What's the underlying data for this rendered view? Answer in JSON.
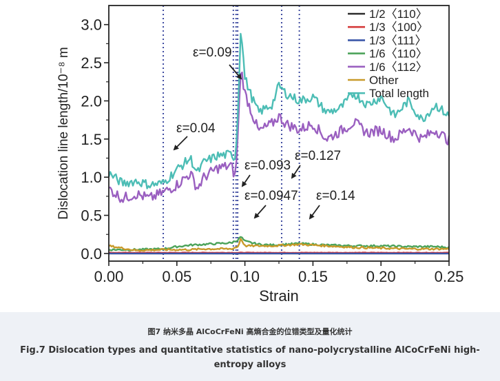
{
  "chart_data": {
    "type": "line",
    "xlabel": "Strain",
    "ylabel": "Dislocation line length/10⁻⁸ m",
    "xlim": [
      0.0,
      0.25
    ],
    "ylim": [
      -0.1,
      3.25
    ],
    "xticks": [
      "0.00",
      "0.05",
      "0.10",
      "0.15",
      "0.20",
      "0.25"
    ],
    "xtick_values": [
      0.0,
      0.05,
      0.1,
      0.15,
      0.2,
      0.25
    ],
    "yticks": [
      "0.0",
      "0.5",
      "1.0",
      "1.5",
      "2.0",
      "2.5",
      "3.0"
    ],
    "ytick_values": [
      0.0,
      0.5,
      1.0,
      1.5,
      2.0,
      2.5,
      3.0
    ],
    "grid": false,
    "legend_position": "top-right",
    "series": [
      {
        "name": "1/2〈110〉",
        "color": "#2b2b2b",
        "x": [
          0.0,
          0.25
        ],
        "y": [
          0.0,
          0.0
        ]
      },
      {
        "name": "1/3〈100〉",
        "color": "#d43a3a",
        "x": [
          0.0,
          0.25
        ],
        "y": [
          0.01,
          0.01
        ]
      },
      {
        "name": "1/3〈111〉",
        "color": "#3a56a8",
        "x": [
          0.0,
          0.25
        ],
        "y": [
          0.0,
          0.0
        ]
      },
      {
        "name": "1/6〈110〉",
        "color": "#4ca35a",
        "x": [
          0.0,
          0.02,
          0.04,
          0.05,
          0.06,
          0.07,
          0.08,
          0.09,
          0.095,
          0.097,
          0.1,
          0.11,
          0.12,
          0.13,
          0.14,
          0.15,
          0.16,
          0.18,
          0.2,
          0.22,
          0.24,
          0.25
        ],
        "y": [
          0.05,
          0.05,
          0.06,
          0.09,
          0.11,
          0.12,
          0.13,
          0.14,
          0.18,
          0.22,
          0.16,
          0.12,
          0.11,
          0.12,
          0.13,
          0.12,
          0.11,
          0.1,
          0.1,
          0.09,
          0.09,
          0.08
        ]
      },
      {
        "name": "1/6〈112〉",
        "color": "#9a5fc0",
        "x": [
          0.0,
          0.01,
          0.02,
          0.03,
          0.04,
          0.05,
          0.06,
          0.065,
          0.07,
          0.08,
          0.09,
          0.093,
          0.095,
          0.097,
          0.1,
          0.105,
          0.11,
          0.12,
          0.125,
          0.13,
          0.14,
          0.15,
          0.16,
          0.17,
          0.18,
          0.19,
          0.2,
          0.21,
          0.22,
          0.23,
          0.24,
          0.25
        ],
        "y": [
          0.85,
          0.72,
          0.78,
          0.72,
          0.8,
          0.9,
          1.05,
          0.85,
          1.0,
          1.12,
          1.15,
          1.0,
          1.6,
          2.45,
          2.1,
          1.85,
          1.6,
          1.7,
          1.8,
          1.7,
          1.62,
          1.7,
          1.5,
          1.6,
          1.72,
          1.58,
          1.62,
          1.5,
          1.65,
          1.5,
          1.62,
          1.48
        ]
      },
      {
        "name": "Other",
        "color": "#c89a2a",
        "x": [
          0.0,
          0.02,
          0.04,
          0.05,
          0.06,
          0.07,
          0.08,
          0.09,
          0.095,
          0.097,
          0.1,
          0.12,
          0.14,
          0.16,
          0.18,
          0.2,
          0.22,
          0.25
        ],
        "y": [
          0.1,
          0.04,
          0.05,
          0.05,
          0.05,
          0.06,
          0.06,
          0.06,
          0.09,
          0.2,
          0.1,
          0.1,
          0.12,
          0.1,
          0.08,
          0.07,
          0.06,
          0.06
        ]
      },
      {
        "name": "Total length",
        "color": "#4cbdb5",
        "x": [
          0.0,
          0.01,
          0.02,
          0.03,
          0.04,
          0.05,
          0.06,
          0.065,
          0.07,
          0.08,
          0.09,
          0.093,
          0.095,
          0.097,
          0.1,
          0.105,
          0.11,
          0.12,
          0.125,
          0.13,
          0.14,
          0.15,
          0.16,
          0.17,
          0.18,
          0.19,
          0.2,
          0.21,
          0.22,
          0.23,
          0.24,
          0.25
        ],
        "y": [
          1.05,
          0.92,
          0.95,
          0.9,
          0.92,
          1.1,
          1.25,
          1.05,
          1.2,
          1.28,
          1.3,
          1.25,
          1.9,
          3.0,
          2.3,
          2.05,
          1.85,
          1.95,
          2.2,
          2.1,
          2.0,
          2.05,
          1.85,
          1.9,
          2.1,
          1.95,
          2.05,
          1.8,
          2.0,
          1.75,
          1.95,
          1.8
        ]
      }
    ],
    "marker_lines": [
      0.04,
      0.0915,
      0.0935,
      0.0947,
      0.127,
      0.14
    ],
    "annotations": [
      {
        "text": "ε=0.09"
      },
      {
        "text": "ε=0.04"
      },
      {
        "text": "ε=0.093"
      },
      {
        "text": "ε=0.127"
      },
      {
        "text": "ε=0.0947"
      },
      {
        "text": "ε=0.14"
      }
    ]
  },
  "caption": {
    "zh": "图7 纳米多晶 AlCoCrFeNi 高熵合金的位错类型及量化统计",
    "en": "Fig.7 Dislocation types and quantitative statistics of nano-polycrystalline AlCoCrFeNi high-entropy alloys"
  }
}
